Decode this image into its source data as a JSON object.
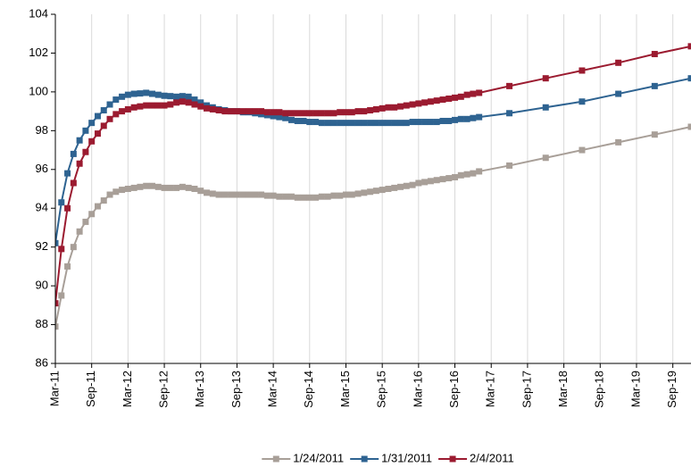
{
  "chart_data": {
    "type": "line",
    "x": [
      0,
      1,
      2,
      3,
      4,
      5,
      6,
      7,
      8,
      9,
      10,
      11,
      12,
      13,
      14,
      15,
      16,
      17,
      18,
      19,
      20,
      21,
      22,
      23,
      24,
      25,
      26,
      27,
      28,
      29,
      30,
      31,
      32,
      33,
      34,
      35,
      36,
      37,
      38,
      39,
      40,
      41,
      42,
      43,
      44,
      45,
      46,
      47,
      48,
      49,
      50,
      51,
      52,
      53,
      54,
      55,
      56,
      57,
      58,
      59,
      60,
      61,
      62,
      63,
      64,
      65,
      66,
      67,
      68,
      69,
      70,
      75,
      81,
      87,
      93,
      99,
      105
    ],
    "series": [
      {
        "name": "1/24/2011",
        "color": "#a89f98",
        "values": [
          87.9,
          89.5,
          91.0,
          92.0,
          92.8,
          93.3,
          93.7,
          94.1,
          94.4,
          94.7,
          94.85,
          94.95,
          95.0,
          95.05,
          95.1,
          95.15,
          95.15,
          95.1,
          95.05,
          95.05,
          95.05,
          95.1,
          95.05,
          95.0,
          94.9,
          94.8,
          94.75,
          94.7,
          94.7,
          94.7,
          94.7,
          94.7,
          94.7,
          94.7,
          94.7,
          94.65,
          94.65,
          94.6,
          94.6,
          94.6,
          94.55,
          94.55,
          94.55,
          94.55,
          94.6,
          94.6,
          94.65,
          94.65,
          94.7,
          94.7,
          94.75,
          94.8,
          94.85,
          94.9,
          94.95,
          95.0,
          95.05,
          95.1,
          95.15,
          95.2,
          95.3,
          95.35,
          95.4,
          95.45,
          95.5,
          95.55,
          95.6,
          95.7,
          95.75,
          95.8,
          95.9,
          96.2,
          96.6,
          97.0,
          97.4,
          97.8,
          98.2
        ]
      },
      {
        "name": "1/31/2011",
        "color": "#2e6391",
        "values": [
          92.2,
          94.3,
          95.8,
          96.8,
          97.5,
          98.0,
          98.4,
          98.75,
          99.05,
          99.35,
          99.6,
          99.75,
          99.85,
          99.9,
          99.92,
          99.95,
          99.9,
          99.85,
          99.8,
          99.78,
          99.75,
          99.78,
          99.75,
          99.6,
          99.45,
          99.3,
          99.2,
          99.1,
          99.05,
          99.0,
          99.0,
          98.95,
          98.95,
          98.9,
          98.85,
          98.8,
          98.75,
          98.7,
          98.65,
          98.55,
          98.5,
          98.5,
          98.45,
          98.45,
          98.4,
          98.4,
          98.4,
          98.4,
          98.4,
          98.4,
          98.4,
          98.4,
          98.4,
          98.4,
          98.4,
          98.4,
          98.4,
          98.4,
          98.4,
          98.45,
          98.45,
          98.45,
          98.45,
          98.45,
          98.5,
          98.5,
          98.55,
          98.6,
          98.6,
          98.65,
          98.7,
          98.9,
          99.2,
          99.5,
          99.9,
          100.3,
          100.7
        ]
      },
      {
        "name": "2/4/2011",
        "color": "#9b1b30",
        "values": [
          89.1,
          91.9,
          94.0,
          95.3,
          96.3,
          96.9,
          97.45,
          97.85,
          98.25,
          98.6,
          98.85,
          99.0,
          99.1,
          99.2,
          99.25,
          99.3,
          99.3,
          99.3,
          99.3,
          99.35,
          99.45,
          99.5,
          99.45,
          99.35,
          99.25,
          99.15,
          99.1,
          99.05,
          99.0,
          99.0,
          99.0,
          99.0,
          99.0,
          99.0,
          99.0,
          98.95,
          98.95,
          98.95,
          98.9,
          98.9,
          98.9,
          98.9,
          98.9,
          98.9,
          98.9,
          98.9,
          98.9,
          98.95,
          98.95,
          98.95,
          99.0,
          99.0,
          99.05,
          99.1,
          99.15,
          99.2,
          99.2,
          99.25,
          99.3,
          99.35,
          99.4,
          99.45,
          99.5,
          99.55,
          99.6,
          99.65,
          99.7,
          99.75,
          99.85,
          99.9,
          99.95,
          100.3,
          100.7,
          101.1,
          101.5,
          101.95,
          102.35
        ]
      }
    ],
    "xlim": [
      0,
      105
    ],
    "xticks": [
      {
        "value": 0,
        "label": "Mar-11"
      },
      {
        "value": 6,
        "label": "Sep-11"
      },
      {
        "value": 12,
        "label": "Mar-12"
      },
      {
        "value": 18,
        "label": "Sep-12"
      },
      {
        "value": 24,
        "label": "Mar-13"
      },
      {
        "value": 30,
        "label": "Sep-13"
      },
      {
        "value": 36,
        "label": "Mar-14"
      },
      {
        "value": 42,
        "label": "Sep-14"
      },
      {
        "value": 48,
        "label": "Mar-15"
      },
      {
        "value": 54,
        "label": "Sep-15"
      },
      {
        "value": 60,
        "label": "Mar-16"
      },
      {
        "value": 66,
        "label": "Sep-16"
      },
      {
        "value": 72,
        "label": "Mar-17"
      },
      {
        "value": 78,
        "label": "Sep-17"
      },
      {
        "value": 84,
        "label": "Mar-18"
      },
      {
        "value": 90,
        "label": "Sep-18"
      },
      {
        "value": 96,
        "label": "Mar-19"
      },
      {
        "value": 102,
        "label": "Sep-19"
      }
    ],
    "ylim": [
      86,
      104
    ],
    "yticks": [
      86,
      88,
      90,
      92,
      94,
      96,
      98,
      100,
      102,
      104
    ],
    "grid": "x",
    "legend": "bottom"
  }
}
